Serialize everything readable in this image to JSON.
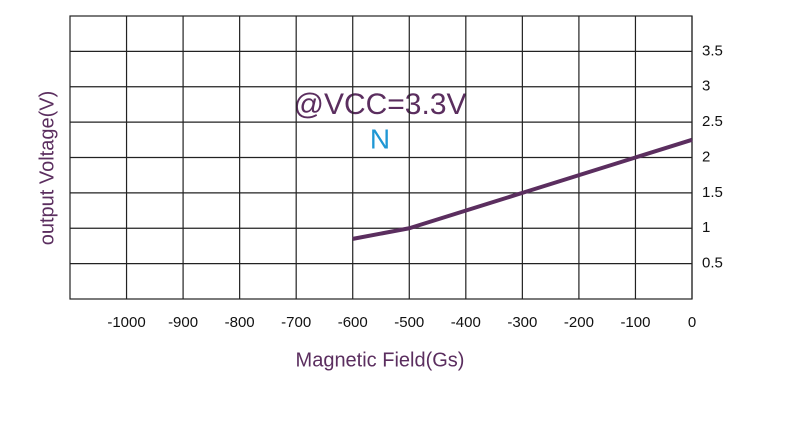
{
  "chart_data": {
    "type": "line",
    "x_label": "Magnetic Field(Gs)",
    "y_label": "output Voltage(V)",
    "annotations": [
      "@VCC=3.3V",
      "N"
    ],
    "x": [
      -600,
      -500,
      -300,
      -100,
      0
    ],
    "series": [
      {
        "color": "#5b2e5f",
        "values": [
          0.85,
          1.0,
          1.5,
          2.0,
          2.25
        ]
      }
    ],
    "xlim": [
      -1100,
      0
    ],
    "xticks": [
      -1000,
      -900,
      -800,
      -700,
      -600,
      -500,
      -400,
      -300,
      -200,
      -100,
      0
    ],
    "ylim": [
      0,
      4
    ],
    "yticks": [
      0.5,
      1.0,
      1.5,
      2.0,
      2.5,
      3.0,
      3.5
    ],
    "grid": true
  }
}
